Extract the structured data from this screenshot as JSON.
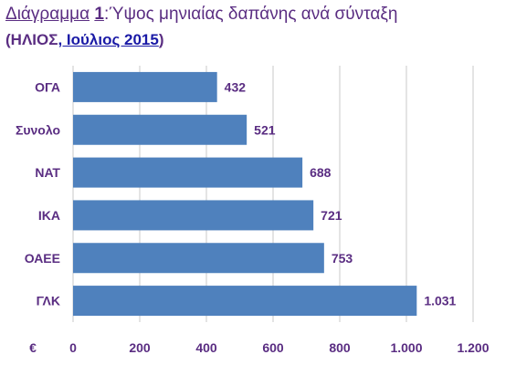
{
  "title": {
    "lead": "Διάγραμμα",
    "number": "1",
    "text": ":Ύψος μηνιαίας δαπάνης ανά σύνταξη"
  },
  "subtitle": {
    "open": "(ΗΛΙΟΣ",
    "source": ", Ιούλιος 2015",
    "close": ")"
  },
  "colors": {
    "bar": "#4f81bd",
    "text": "#5a2d82",
    "grid": "#c8c8c8"
  },
  "chart_data": {
    "type": "bar",
    "orientation": "horizontal",
    "unit_label": "€",
    "categories": [
      "ΟΓΑ",
      "Συνολο",
      "ΝΑΤ",
      "ΙΚΑ",
      "ΟΑΕΕ",
      "ΓΛΚ"
    ],
    "values": [
      432,
      521,
      688,
      721,
      753,
      1031
    ],
    "value_labels": [
      "432",
      "521",
      "688",
      "721",
      "753",
      "1.031"
    ],
    "xlim": [
      0,
      1200
    ],
    "xticks": [
      0,
      200,
      400,
      600,
      800,
      1000,
      1200
    ],
    "xtick_labels": [
      "0",
      "200",
      "400",
      "600",
      "800",
      "1.000",
      "1.200"
    ],
    "grid": true
  }
}
